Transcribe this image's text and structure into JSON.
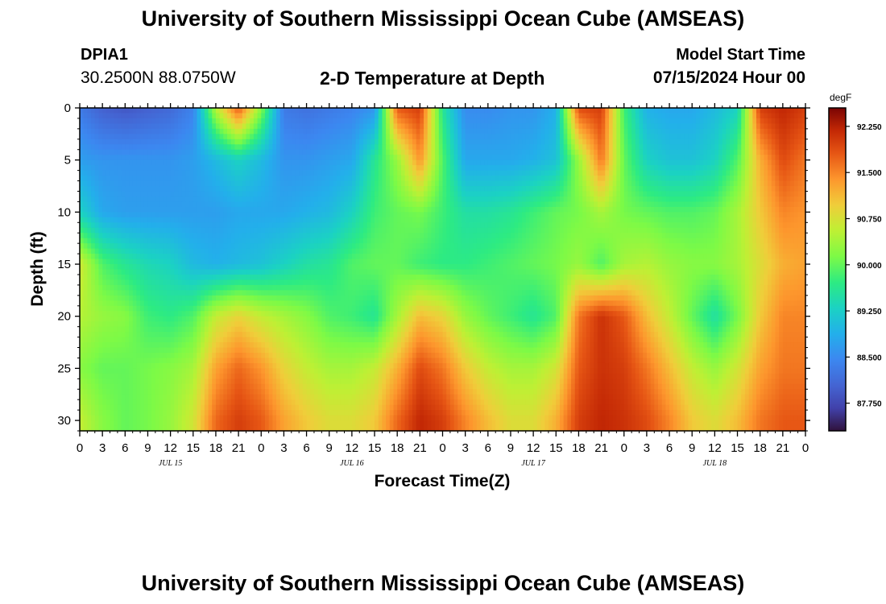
{
  "header": {
    "title": "University of Southern Mississippi Ocean Cube (AMSEAS)",
    "station": "DPIA1",
    "coords": "30.2500N  88.0750W",
    "subtitle": "2-D Temperature at Depth",
    "start_label": "Model Start Time",
    "start_time": "07/15/2024 Hour 00"
  },
  "footer": {
    "title": "University of Southern Mississippi Ocean Cube (AMSEAS)"
  },
  "chart_data": {
    "type": "heatmap",
    "xlabel": "Forecast Time(Z)",
    "ylabel": "Depth (ft)",
    "colorbar_unit": "degF",
    "colorbar_ticks": [
      "92.250",
      "91.500",
      "90.750",
      "90.000",
      "89.250",
      "88.500",
      "87.750"
    ],
    "colorbar_values": [
      92.25,
      91.5,
      90.75,
      90.0,
      89.25,
      88.5,
      87.75
    ],
    "zlim": [
      87.3,
      92.55
    ],
    "xlim_hours": [
      0,
      96
    ],
    "ylim_ft": [
      0,
      31
    ],
    "y_ticks": [
      "0",
      "5",
      "10",
      "15",
      "20",
      "25",
      "30"
    ],
    "x_ticks": [
      "0",
      "3",
      "6",
      "9",
      "12",
      "15",
      "18",
      "21",
      "0",
      "3",
      "6",
      "9",
      "12",
      "15",
      "18",
      "21",
      "0",
      "3",
      "6",
      "9",
      "12",
      "15",
      "18",
      "21",
      "0",
      "3",
      "6",
      "9",
      "12",
      "15",
      "18",
      "21",
      "0"
    ],
    "date_labels": [
      "JUL 15",
      "JUL 16",
      "JUL 17",
      "JUL 18"
    ],
    "date_label_hours": [
      12,
      36,
      60,
      84
    ],
    "depths_ft": [
      0,
      5,
      10,
      15,
      20,
      25,
      30
    ],
    "hours": [
      0,
      3,
      6,
      9,
      12,
      15,
      18,
      21,
      24,
      27,
      30,
      33,
      36,
      39,
      42,
      45,
      48,
      51,
      54,
      57,
      60,
      63,
      66,
      69,
      72,
      75,
      78,
      81,
      84,
      87,
      90,
      93,
      96
    ],
    "temperature_degF": [
      [
        88.3,
        88.0,
        87.9,
        88.0,
        88.1,
        88.4,
        90.5,
        91.8,
        90.2,
        88.3,
        88.2,
        88.3,
        88.4,
        88.6,
        91.8,
        92.0,
        89.6,
        88.5,
        88.5,
        88.6,
        88.6,
        88.9,
        91.9,
        92.0,
        89.8,
        88.9,
        88.8,
        88.8,
        89.0,
        89.3,
        92.0,
        92.2,
        92.0
      ],
      [
        88.7,
        88.6,
        88.6,
        88.6,
        88.6,
        88.7,
        89.0,
        89.3,
        89.0,
        88.6,
        88.6,
        88.7,
        88.8,
        89.6,
        90.3,
        91.4,
        89.9,
        88.8,
        88.8,
        88.8,
        88.9,
        89.1,
        90.3,
        91.6,
        90.0,
        89.3,
        89.1,
        89.1,
        89.3,
        89.9,
        91.2,
        91.9,
        91.6
      ],
      [
        89.3,
        88.8,
        88.7,
        88.7,
        88.7,
        88.7,
        88.7,
        88.8,
        88.8,
        88.8,
        88.9,
        89.0,
        89.3,
        89.8,
        90.0,
        90.1,
        89.8,
        89.5,
        89.5,
        89.6,
        89.8,
        90.0,
        90.1,
        90.4,
        90.1,
        90.0,
        89.9,
        89.9,
        90.0,
        90.4,
        91.0,
        91.5,
        91.4
      ],
      [
        90.7,
        89.9,
        89.6,
        89.4,
        89.3,
        89.0,
        88.9,
        89.0,
        89.1,
        89.3,
        89.5,
        89.6,
        89.9,
        90.0,
        90.0,
        89.8,
        89.7,
        89.7,
        89.8,
        89.9,
        90.0,
        90.1,
        90.3,
        89.9,
        90.4,
        90.5,
        90.3,
        90.2,
        90.2,
        90.4,
        90.8,
        91.2,
        91.3
      ],
      [
        90.5,
        90.3,
        90.2,
        89.8,
        89.7,
        89.9,
        90.6,
        90.9,
        90.6,
        90.4,
        90.2,
        89.9,
        89.8,
        89.6,
        90.4,
        91.1,
        90.9,
        90.3,
        90.0,
        89.8,
        89.6,
        89.9,
        91.6,
        92.1,
        91.8,
        91.1,
        90.6,
        90.0,
        89.5,
        90.1,
        91.0,
        91.5,
        91.5
      ],
      [
        90.2,
        90.0,
        90.0,
        90.1,
        90.2,
        90.4,
        91.3,
        91.7,
        91.4,
        90.9,
        90.6,
        90.4,
        90.4,
        90.6,
        91.2,
        91.9,
        91.6,
        91.0,
        90.6,
        90.4,
        90.4,
        90.7,
        91.8,
        92.1,
        92.0,
        91.6,
        91.1,
        90.6,
        90.3,
        90.7,
        91.3,
        91.6,
        91.6
      ],
      [
        90.6,
        90.2,
        90.0,
        90.1,
        90.3,
        90.7,
        91.7,
        92.0,
        91.8,
        91.3,
        91.0,
        90.8,
        90.8,
        91.0,
        91.7,
        92.2,
        92.0,
        91.5,
        91.1,
        90.8,
        90.8,
        91.2,
        92.0,
        92.2,
        92.1,
        91.9,
        91.5,
        91.0,
        90.8,
        91.1,
        91.6,
        91.8,
        91.8
      ]
    ]
  }
}
